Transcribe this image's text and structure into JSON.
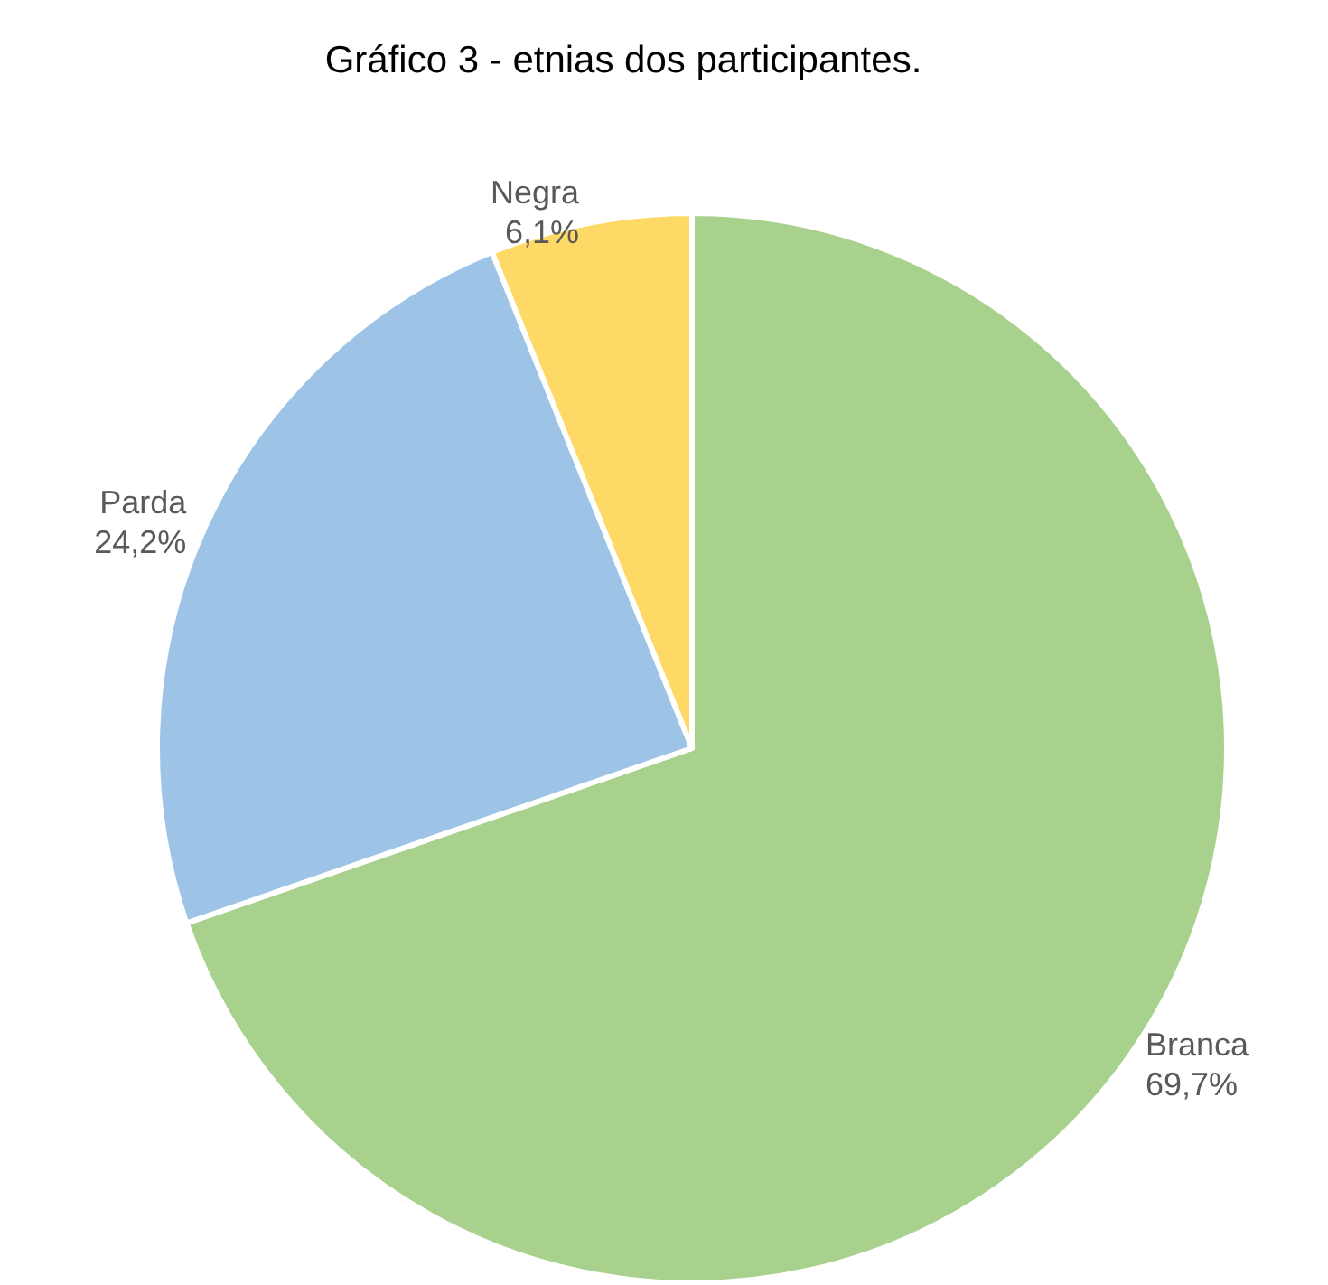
{
  "chart_data": {
    "type": "pie",
    "title": "Gráfico 3 - etnias dos participantes.",
    "categories": [
      "Branca",
      "Parda",
      "Negra"
    ],
    "values": [
      69.7,
      24.2,
      6.1
    ],
    "colors": [
      "#a9d18e",
      "#9dc3e6",
      "#ffd966"
    ],
    "value_labels": [
      "69,7%",
      "24,2%",
      "6,1%"
    ],
    "legend": false
  }
}
